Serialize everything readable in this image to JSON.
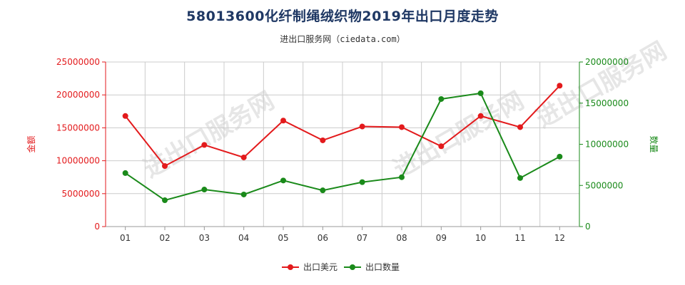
{
  "title": "58013600化纤制绳绒织物2019年出口月度走势",
  "subtitle": "进出口服务网（ciedata.com）",
  "watermark": "进出口服务网",
  "colors": {
    "left": "#e31a1c",
    "right": "#1a8a1a"
  },
  "chart_data": {
    "type": "line",
    "title": "58013600化纤制绳绒织物2019年出口月度走势",
    "categories": [
      "01",
      "02",
      "03",
      "04",
      "05",
      "06",
      "07",
      "08",
      "09",
      "10",
      "11",
      "12"
    ],
    "y_left": {
      "label": "金额",
      "min": 0,
      "max": 25000000,
      "ticks": [
        "0",
        "5000000",
        "10000000",
        "15000000",
        "20000000",
        "25000000"
      ]
    },
    "y_right": {
      "label": "数量",
      "min": 0,
      "max": 20000000,
      "ticks": [
        "0",
        "5000000",
        "10000000",
        "15000000",
        "20000000"
      ]
    },
    "grid": true,
    "legend_position": "bottom",
    "series": [
      {
        "name": "出口美元",
        "axis": "left",
        "color": "#e31a1c",
        "values": [
          16800000,
          9200000,
          12400000,
          10500000,
          16100000,
          13100000,
          15200000,
          15100000,
          12200000,
          16800000,
          15100000,
          21400000
        ]
      },
      {
        "name": "出口数量",
        "axis": "right",
        "color": "#1a8a1a",
        "values": [
          6500000,
          3200000,
          4500000,
          3900000,
          5600000,
          4400000,
          5400000,
          6000000,
          15500000,
          16200000,
          5900000,
          8500000
        ]
      }
    ]
  }
}
